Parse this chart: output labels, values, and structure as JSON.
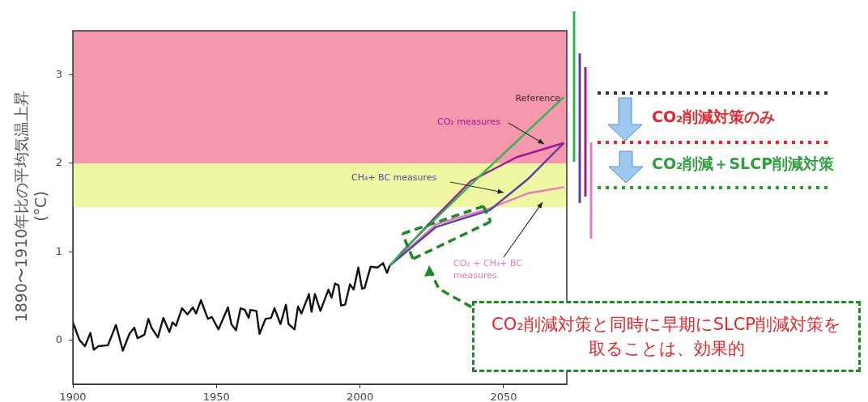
{
  "chart_data": {
    "type": "line",
    "ylabel": "1890〜1910年比の平均気温上昇 (°C)",
    "xlim": [
      1900,
      2072
    ],
    "xticks": [
      1900,
      1950,
      2000,
      2050
    ],
    "ylim": [
      -0.5,
      3.5
    ],
    "yticks": [
      0,
      1,
      2,
      3
    ],
    "grid": false,
    "legend": false,
    "marker": "none",
    "line_style": "solid",
    "bands": [
      {
        "axis": "y",
        "from": 2,
        "to": 3.5,
        "color": "#f597ad"
      },
      {
        "axis": "y",
        "from": 1.5,
        "to": 2,
        "color": "#eef6a2"
      }
    ],
    "series": [
      {
        "color": "#111111",
        "x": [
          1900,
          1902.3,
          1904.2,
          1906.1,
          1907.3,
          1908.9,
          1912.2,
          1915,
          1917.4,
          1919.7,
          1921.4,
          1922.5,
          1924.9,
          1926.3,
          1927.4,
          1929.6,
          1931.5,
          1933.6,
          1934.7,
          1935.9,
          1938,
          1939.9,
          1941.8,
          1942.9,
          1944.6,
          1947,
          1948.4,
          1950.7,
          1954,
          1955.2,
          1956.8,
          1958.4,
          1959.9,
          1961.2,
          1961.8,
          1963.9,
          1965,
          1967.1,
          1969,
          1970.2,
          1972.3,
          1974.2,
          1975.1,
          1977.2,
          1978.4,
          1979.6,
          1982.2,
          1983.1,
          1984.3,
          1986.2,
          1989,
          1990.1,
          1991.3,
          1992.5,
          1993.4,
          1994.8,
          1996.5,
          1997.8,
          1999.4,
          2000.7,
          2001.6,
          2003.7,
          2006.1,
          2008,
          2009.4,
          2010.3
        ],
        "values": [
          0.2,
          0,
          -0.07,
          0.08,
          -0.11,
          -0.07,
          -0.06,
          0.17,
          -0.12,
          0.07,
          0.14,
          0.02,
          0.06,
          0.24,
          0.14,
          0.03,
          0.25,
          0.09,
          0.2,
          0.16,
          0.36,
          0.29,
          0.37,
          0.3,
          0.45,
          0.24,
          0.26,
          0.12,
          0.37,
          0.18,
          0.11,
          0.36,
          0.34,
          0.25,
          0.34,
          0.33,
          0.07,
          0.24,
          0.25,
          0.36,
          0.18,
          0.4,
          0.18,
          0.12,
          0.38,
          0.3,
          0.52,
          0.32,
          0.52,
          0.33,
          0.57,
          0.48,
          0.64,
          0.62,
          0.39,
          0.4,
          0.63,
          0.57,
          0.82,
          0.58,
          0.59,
          0.83,
          0.82,
          0.87,
          0.76,
          0.84
        ]
      },
      {
        "name": "Reference",
        "color": "#2db84a",
        "x": [
          2010.3,
          2015.5,
          2038.6,
          2071
        ],
        "values": [
          0.84,
          1.03,
          1.76,
          2.75
        ]
      },
      {
        "name": "CO₂ measures",
        "color": "#a0189a",
        "x": [
          2010.3,
          2026.5,
          2038.6,
          2054.6,
          2071
        ],
        "values": [
          0.84,
          1.4,
          1.8,
          2.07,
          2.23
        ]
      },
      {
        "name": "CH₄+ BC measures",
        "color": "#5b3fa8",
        "x": [
          2010.3,
          2026.5,
          2045.2,
          2058.4,
          2071
        ],
        "values": [
          0.84,
          1.28,
          1.47,
          1.82,
          2.23
        ]
      },
      {
        "name": "CO₂ + CH₄+ BC measures",
        "color": "#e47bc0",
        "x": [
          2010.3,
          2026.5,
          2045.2,
          2058.4,
          2071
        ],
        "values": [
          0.84,
          1.31,
          1.49,
          1.66,
          1.73
        ]
      }
    ],
    "annotations": [
      "CO₂削減対策のみ",
      "CO₂削減＋SLCP削減対策",
      "CO₂削減対策と同時に早期にSLCP削減対策を取ることは、効果的"
    ]
  }
}
